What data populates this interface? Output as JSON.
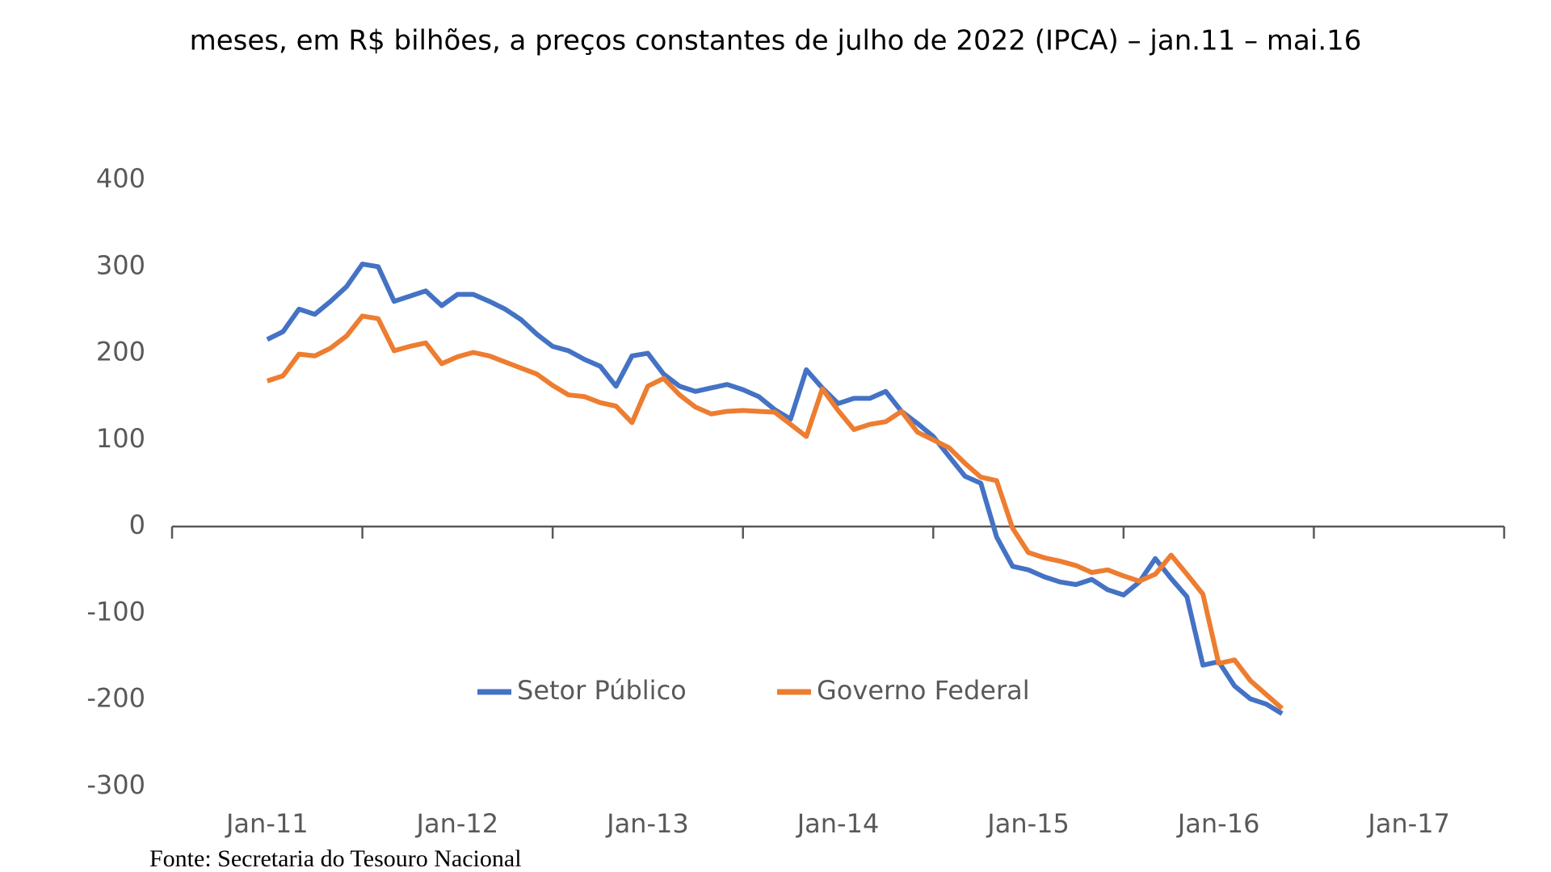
{
  "chart_data": {
    "type": "line",
    "title": "meses, em R$ bilhões, a preços constantes de julho de 2022 (IPCA) – jan.11 – mai.16",
    "source": "Fonte: Secretaria do Tesouro Nacional",
    "x": [
      2011.5,
      2011.583,
      2011.667,
      2011.75,
      2011.833,
      2011.917,
      2012,
      2012.083,
      2012.167,
      2012.25,
      2012.333,
      2012.417,
      2012.5,
      2012.583,
      2012.667,
      2012.75,
      2012.833,
      2012.917,
      2013,
      2013.083,
      2013.167,
      2013.25,
      2013.333,
      2013.417,
      2013.5,
      2013.583,
      2013.667,
      2013.75,
      2013.833,
      2013.917,
      2014,
      2014.083,
      2014.167,
      2014.25,
      2014.333,
      2014.417,
      2014.5,
      2014.583,
      2014.667,
      2014.75,
      2014.833,
      2014.917,
      2015,
      2015.083,
      2015.167,
      2015.25,
      2015.333,
      2015.417,
      2015.5,
      2015.583,
      2015.667,
      2015.75,
      2015.833,
      2015.917,
      2016,
      2016.083,
      2016.167,
      2016.25,
      2016.333,
      2016.417,
      2016.5,
      2016.583,
      2016.667,
      2016.75,
      2016.833
    ],
    "series": [
      {
        "name": "Setor Público",
        "color": "#4472c4",
        "values": [
          216,
          225,
          251,
          245,
          260,
          277,
          303,
          300,
          260,
          266,
          272,
          255,
          268,
          268,
          260,
          251,
          239,
          222,
          208,
          203,
          193,
          185,
          162,
          197,
          200,
          176,
          162,
          156,
          160,
          164,
          158,
          150,
          135,
          124,
          181,
          160,
          142,
          148,
          148,
          156,
          133,
          119,
          104,
          81,
          58,
          50,
          -12,
          -46,
          -50,
          -58,
          -64,
          -67,
          -61,
          -73,
          -79,
          -64,
          -37,
          -60,
          -81,
          -160,
          -156,
          -184,
          -199,
          -205,
          -216
        ]
      },
      {
        "name": "Governo Federal",
        "color": "#ed7d31",
        "values": [
          168,
          174,
          199,
          197,
          206,
          220,
          243,
          240,
          203,
          208,
          212,
          188,
          196,
          201,
          197,
          190,
          183,
          176,
          163,
          152,
          150,
          143,
          139,
          120,
          162,
          171,
          152,
          138,
          130,
          133,
          134,
          133,
          132,
          118,
          104,
          159,
          134,
          112,
          118,
          121,
          133,
          109,
          100,
          91,
          73,
          57,
          53,
          -2,
          -30,
          -36,
          -40,
          -45,
          -53,
          -50,
          -57,
          -63,
          -55,
          -33,
          -55,
          -78,
          -158,
          -154,
          -178,
          -194,
          -210
        ]
      }
    ],
    "xlim": [
      2011,
      2018
    ],
    "xticks": [
      2011,
      2012,
      2013,
      2014,
      2015,
      2016,
      2017,
      2018
    ],
    "xtick_labels": [
      {
        "value": 2011.5,
        "label": "Jan-11"
      },
      {
        "value": 2012.5,
        "label": "Jan-12"
      },
      {
        "value": 2013.5,
        "label": "Jan-13"
      },
      {
        "value": 2014.5,
        "label": "Jan-14"
      },
      {
        "value": 2015.5,
        "label": "Jan-15"
      },
      {
        "value": 2016.5,
        "label": "Jan-16"
      },
      {
        "value": 2017.5,
        "label": "Jan-17"
      }
    ],
    "ylim": [
      -300,
      400
    ],
    "yticks": [
      -300,
      -200,
      -100,
      0,
      100,
      200,
      300,
      400
    ],
    "grid": false,
    "legend": "inside-bottom"
  }
}
